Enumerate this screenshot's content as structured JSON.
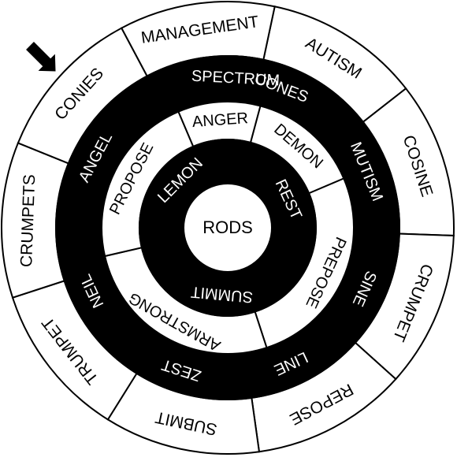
{
  "colors": {
    "ink": "#000000",
    "paper": "#ffffff"
  },
  "arrow_icon": "arrow-down-right-icon",
  "rings": [
    {
      "name": "outer",
      "words": [
        "AUTISM",
        "COSINE",
        "CRUMPET",
        "REPOSE",
        "SUBMIT",
        "TRUMPET",
        "CRUMPETS",
        "CONIES",
        "MANAGEMENT"
      ],
      "fills": [
        "paper",
        "paper",
        "paper",
        "paper",
        "paper",
        "paper",
        "paper",
        "paper",
        "paper"
      ]
    },
    {
      "name": "second",
      "words": [
        "CONES",
        "MUTISM",
        "SINE",
        "LINE",
        "ZEST",
        "NEIL",
        "ANGEL",
        "SPECTRUM"
      ],
      "fills": [
        "ink",
        "ink",
        "ink",
        "ink",
        "ink",
        "ink",
        "ink",
        "ink"
      ]
    },
    {
      "name": "third",
      "words": [
        "DEMON",
        "PREPOSE",
        "ARMSTRONG",
        "PROPOSE",
        "ANGER"
      ],
      "fills": [
        "paper",
        "paper",
        "paper",
        "paper",
        "paper"
      ]
    },
    {
      "name": "inner",
      "words": [
        "REST",
        "SUMMIT",
        "LEMON"
      ],
      "fills": [
        "ink",
        "ink",
        "ink"
      ]
    }
  ],
  "center": {
    "word": "RODS"
  }
}
